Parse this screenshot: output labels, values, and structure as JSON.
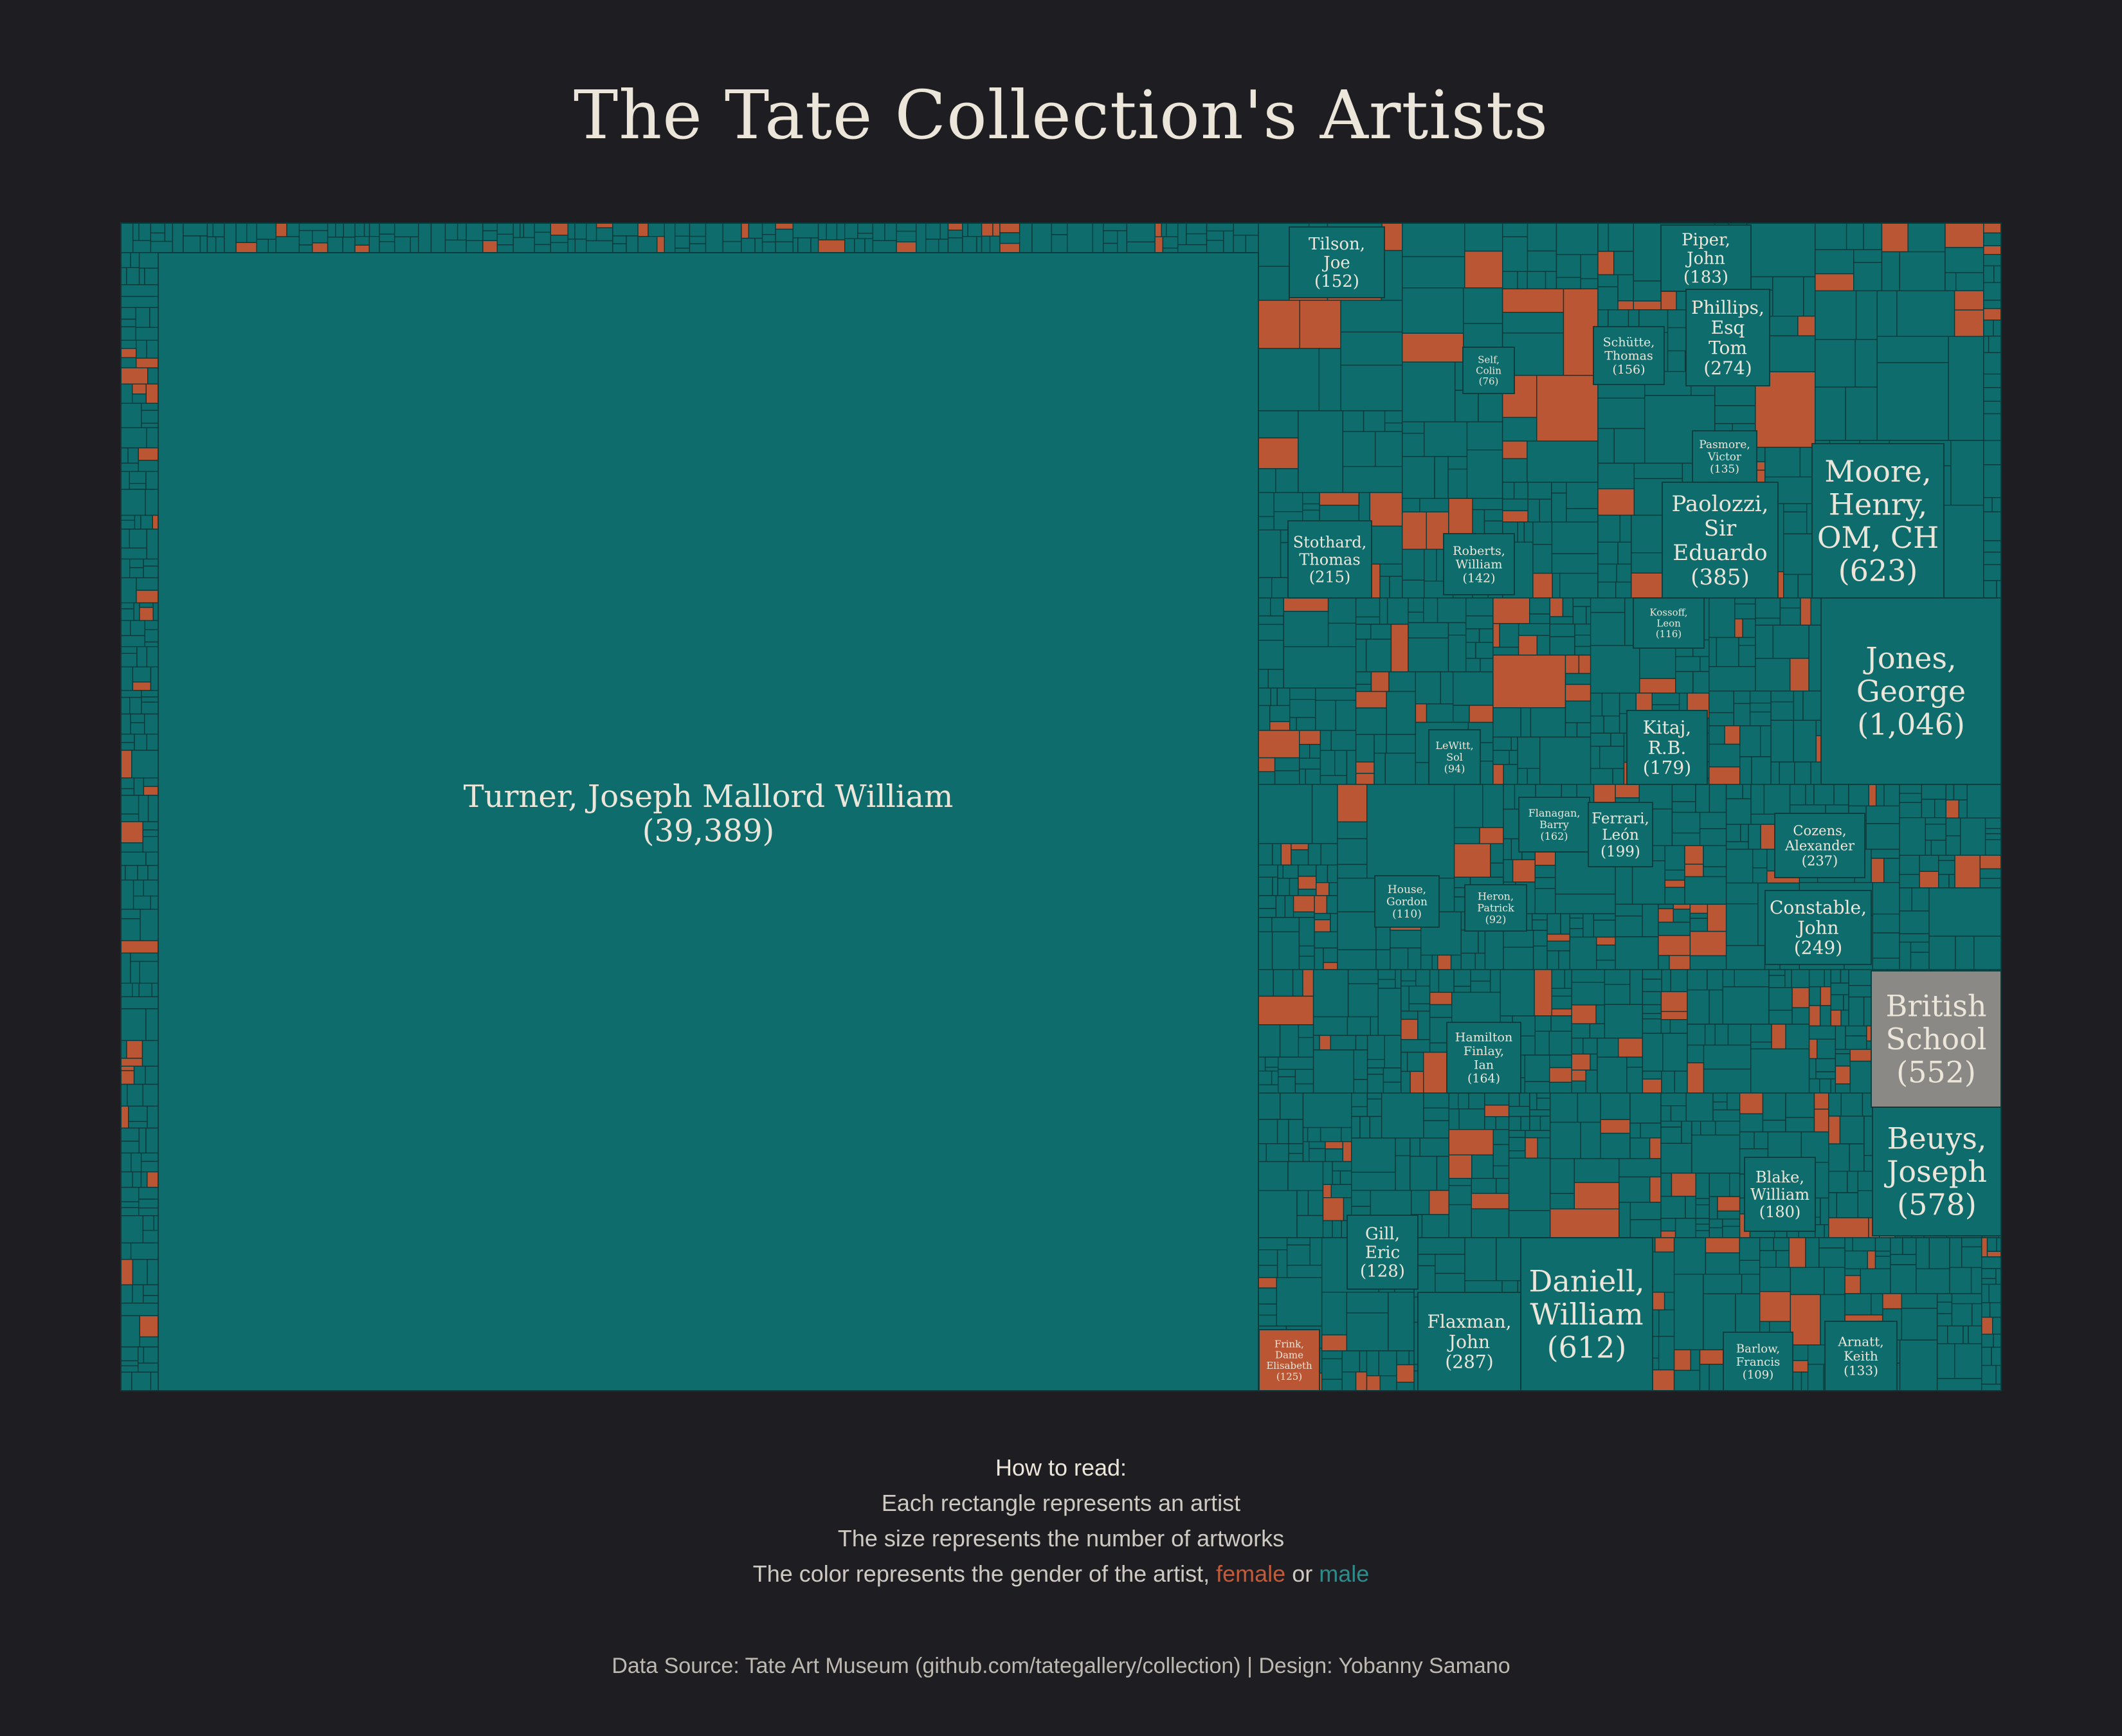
{
  "title": "The Tate Collection's Artists",
  "colors": {
    "female": "#bb5634",
    "male": "#0e6d6c",
    "unknown": "#8b8985",
    "background": "#1e1d22",
    "border": "#0a3a3b",
    "text": "#ece6da"
  },
  "legend": {
    "heading": "How to read:",
    "line1": "Each rectangle represents an artist",
    "line2": "The size represents the number of artworks",
    "line3_prefix": "The color represents the gender of the artist, ",
    "female_word": "female",
    "or_word": " or ",
    "male_word": "male"
  },
  "source": "Data Source: Tate Art Museum (github.com/tategallery/collection) | Design: Yobanny Samano",
  "chart_data": {
    "type": "treemap",
    "value_label": "number of artworks",
    "labeled_artists": [
      {
        "name": "Turner, Joseph Mallord William",
        "count": "(39,389)",
        "gender": "male"
      },
      {
        "name": "Tilson, Joe",
        "count": "(152)",
        "gender": "male"
      },
      {
        "name": "Piper, John",
        "count": "(183)",
        "gender": "male"
      },
      {
        "name": "Self, Colin",
        "count": "(76)",
        "gender": "male"
      },
      {
        "name": "Schütte, Thomas",
        "count": "(156)",
        "gender": "male"
      },
      {
        "name": "Phillips, Esq Tom",
        "count": "(274)",
        "gender": "male"
      },
      {
        "name": "Pasmore, Victor",
        "count": "(135)",
        "gender": "male"
      },
      {
        "name": "Paolozzi, Sir Eduardo",
        "count": "(385)",
        "gender": "male"
      },
      {
        "name": "Moore, Henry, OM, CH",
        "count": "(623)",
        "gender": "male"
      },
      {
        "name": "Stothard, Thomas",
        "count": "(215)",
        "gender": "male"
      },
      {
        "name": "Roberts, William",
        "count": "(142)",
        "gender": "male"
      },
      {
        "name": "Kossoff, Leon",
        "count": "(116)",
        "gender": "male"
      },
      {
        "name": "Jones, George",
        "count": "(1,046)",
        "gender": "male"
      },
      {
        "name": "LeWitt, Sol",
        "count": "(94)",
        "gender": "male"
      },
      {
        "name": "Kitaj, R.B.",
        "count": "(179)",
        "gender": "male"
      },
      {
        "name": "Flanagan, Barry",
        "count": "(162)",
        "gender": "male"
      },
      {
        "name": "Ferrari, León",
        "count": "(199)",
        "gender": "male"
      },
      {
        "name": "Cozens, Alexander",
        "count": "(237)",
        "gender": "male"
      },
      {
        "name": "House, Gordon",
        "count": "(110)",
        "gender": "male"
      },
      {
        "name": "Heron, Patrick",
        "count": "(92)",
        "gender": "male"
      },
      {
        "name": "Constable, John",
        "count": "(249)",
        "gender": "male"
      },
      {
        "name": "British School",
        "count": "(552)",
        "gender": "unknown"
      },
      {
        "name": "Hamilton Finlay, Ian",
        "count": "(164)",
        "gender": "male"
      },
      {
        "name": "Beuys, Joseph",
        "count": "(578)",
        "gender": "male"
      },
      {
        "name": "Blake, William",
        "count": "(180)",
        "gender": "male"
      },
      {
        "name": "Gill, Eric",
        "count": "(128)",
        "gender": "male"
      },
      {
        "name": "Daniell, William",
        "count": "(612)",
        "gender": "male"
      },
      {
        "name": "Flaxman, John",
        "count": "(287)",
        "gender": "male"
      },
      {
        "name": "Frink, Dame Elisabeth",
        "count": "(125)",
        "gender": "female"
      },
      {
        "name": "Barlow, Francis",
        "count": "(109)",
        "gender": "male"
      },
      {
        "name": "Arnatt, Keith",
        "count": "(133)",
        "gender": "male"
      }
    ]
  }
}
